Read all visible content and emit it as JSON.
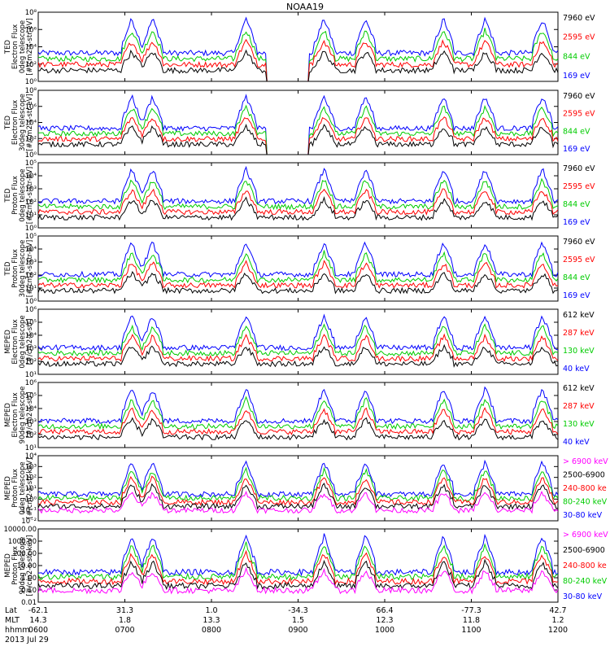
{
  "chart_data": {
    "type": "line",
    "title": "NOAA19",
    "x_time_range": [
      "0600",
      "1200"
    ],
    "x_ticks": [
      {
        "hhmm": "0600",
        "lat": "-62.1",
        "mlt": "14.3"
      },
      {
        "hhmm": "0700",
        "lat": "31.3",
        "mlt": "1.8"
      },
      {
        "hhmm": "0800",
        "lat": "1.0",
        "mlt": "13.3"
      },
      {
        "hhmm": "0900",
        "lat": "-34.3",
        "mlt": "1.5"
      },
      {
        "hhmm": "1000",
        "lat": "66.4",
        "mlt": "12.3"
      },
      {
        "hhmm": "1100",
        "lat": "-77.3",
        "mlt": "11.8"
      },
      {
        "hhmm": "1200",
        "lat": "42.7",
        "mlt": "1.2"
      }
    ],
    "x_row_labels": [
      "Lat",
      "MLT",
      "hhmm"
    ],
    "date_label": "2013 Jul 29",
    "panels": [
      {
        "ylabel": [
          "TED",
          "Electron Flux",
          "0deg telescope",
          "[#/cm2-s-str-eV]"
        ],
        "log": true,
        "ylim_exp": [
          0,
          8
        ],
        "yticks": [
          "10⁰",
          "10²",
          "10⁴",
          "10⁶",
          "10⁸"
        ],
        "series": [
          {
            "name": "7960 eV",
            "color": "#000000"
          },
          {
            "name": "2595 eV",
            "color": "#ff0000"
          },
          {
            "name": "844 eV",
            "color": "#00cc00"
          },
          {
            "name": "169 eV",
            "color": "#0000ff"
          }
        ]
      },
      {
        "ylabel": [
          "TED",
          "Electron Flux",
          "30deg telescope",
          "[#/cm2-s-str-eV]"
        ],
        "log": true,
        "ylim_exp": [
          0,
          8
        ],
        "yticks": [
          "10⁰",
          "10²",
          "10⁴",
          "10⁶",
          "10⁸"
        ],
        "series": [
          {
            "name": "7960 eV",
            "color": "#000000"
          },
          {
            "name": "2595 eV",
            "color": "#ff0000"
          },
          {
            "name": "844 eV",
            "color": "#00cc00"
          },
          {
            "name": "169 eV",
            "color": "#0000ff"
          }
        ]
      },
      {
        "ylabel": [
          "TED",
          "Proton Flux",
          "0deg telescope",
          "[#/cm2-s-str-eV]"
        ],
        "log": true,
        "ylim_exp": [
          0,
          5
        ],
        "yticks": [
          "10⁰",
          "10¹",
          "10²",
          "10³",
          "10⁴",
          "10⁵"
        ],
        "series": [
          {
            "name": "7960 eV",
            "color": "#000000"
          },
          {
            "name": "2595 eV",
            "color": "#ff0000"
          },
          {
            "name": "844 eV",
            "color": "#00cc00"
          },
          {
            "name": "169 eV",
            "color": "#0000ff"
          }
        ]
      },
      {
        "ylabel": [
          "TED",
          "Proton Flux",
          "30deg telescope",
          "[#/cm2-s-str-eV]"
        ],
        "log": true,
        "ylim_exp": [
          0,
          5
        ],
        "yticks": [
          "10⁰",
          "10¹",
          "10²",
          "10³",
          "10⁴",
          "10⁵"
        ],
        "series": [
          {
            "name": "7960 eV",
            "color": "#000000"
          },
          {
            "name": "2595 eV",
            "color": "#ff0000"
          },
          {
            "name": "844 eV",
            "color": "#00cc00"
          },
          {
            "name": "169 eV",
            "color": "#0000ff"
          }
        ]
      },
      {
        "ylabel": [
          "MEPED",
          "Electron Flux",
          "0deg telescope",
          "[#/cm2-s-str]"
        ],
        "log": true,
        "ylim_exp": [
          1,
          6
        ],
        "yticks": [
          "10¹",
          "10²",
          "10³",
          "10⁴",
          "10⁵",
          "10⁶"
        ],
        "series": [
          {
            "name": "612 keV",
            "color": "#000000"
          },
          {
            "name": "287 keV",
            "color": "#ff0000"
          },
          {
            "name": "130 keV",
            "color": "#00cc00"
          },
          {
            "name": "40 keV",
            "color": "#0000ff"
          }
        ]
      },
      {
        "ylabel": [
          "MEPED",
          "Electron Flux",
          "90deg telescope",
          "[#/cm2-s-str]"
        ],
        "log": true,
        "ylim_exp": [
          1,
          6
        ],
        "yticks": [
          "10¹",
          "10²",
          "10³",
          "10⁴",
          "10⁵",
          "10⁶"
        ],
        "series": [
          {
            "name": "612 keV",
            "color": "#000000"
          },
          {
            "name": "287 keV",
            "color": "#ff0000"
          },
          {
            "name": "130 keV",
            "color": "#00cc00"
          },
          {
            "name": "40 keV",
            "color": "#0000ff"
          }
        ]
      },
      {
        "ylabel": [
          "MEPED",
          "Proton Flux",
          "0deg telescope",
          "[#/cm2-s-str-keV]"
        ],
        "log": true,
        "ylim_exp": [
          -2,
          4
        ],
        "yticks": [
          "10⁻²",
          "10⁻¹",
          "10⁰",
          "10¹",
          "10²",
          "10³",
          "10⁴"
        ],
        "series": [
          {
            "name": "> 6900 keV",
            "color": "#ff00ff"
          },
          {
            "name": "2500-6900",
            "color": "#000000"
          },
          {
            "name": "240-800 ke",
            "color": "#ff0000"
          },
          {
            "name": "80-240 keV",
            "color": "#00cc00"
          },
          {
            "name": "30-80 keV",
            "color": "#0000ff"
          }
        ]
      },
      {
        "ylabel": [
          "MEPED",
          "Proton Flux",
          "90deg telescope",
          "[#/cm2-s-str-keV]"
        ],
        "log": true,
        "ylim_exp": [
          -2,
          4
        ],
        "yticks": [
          "0.01",
          "0.10",
          "1.00",
          "10.00",
          "100.00",
          "1000.00",
          "10000.00"
        ],
        "series": [
          {
            "name": "> 6900 keV",
            "color": "#ff00ff"
          },
          {
            "name": "2500-6900",
            "color": "#000000"
          },
          {
            "name": "240-800 ke",
            "color": "#ff0000"
          },
          {
            "name": "80-240 keV",
            "color": "#00cc00"
          },
          {
            "name": "30-80 keV",
            "color": "#0000ff"
          }
        ]
      }
    ]
  }
}
